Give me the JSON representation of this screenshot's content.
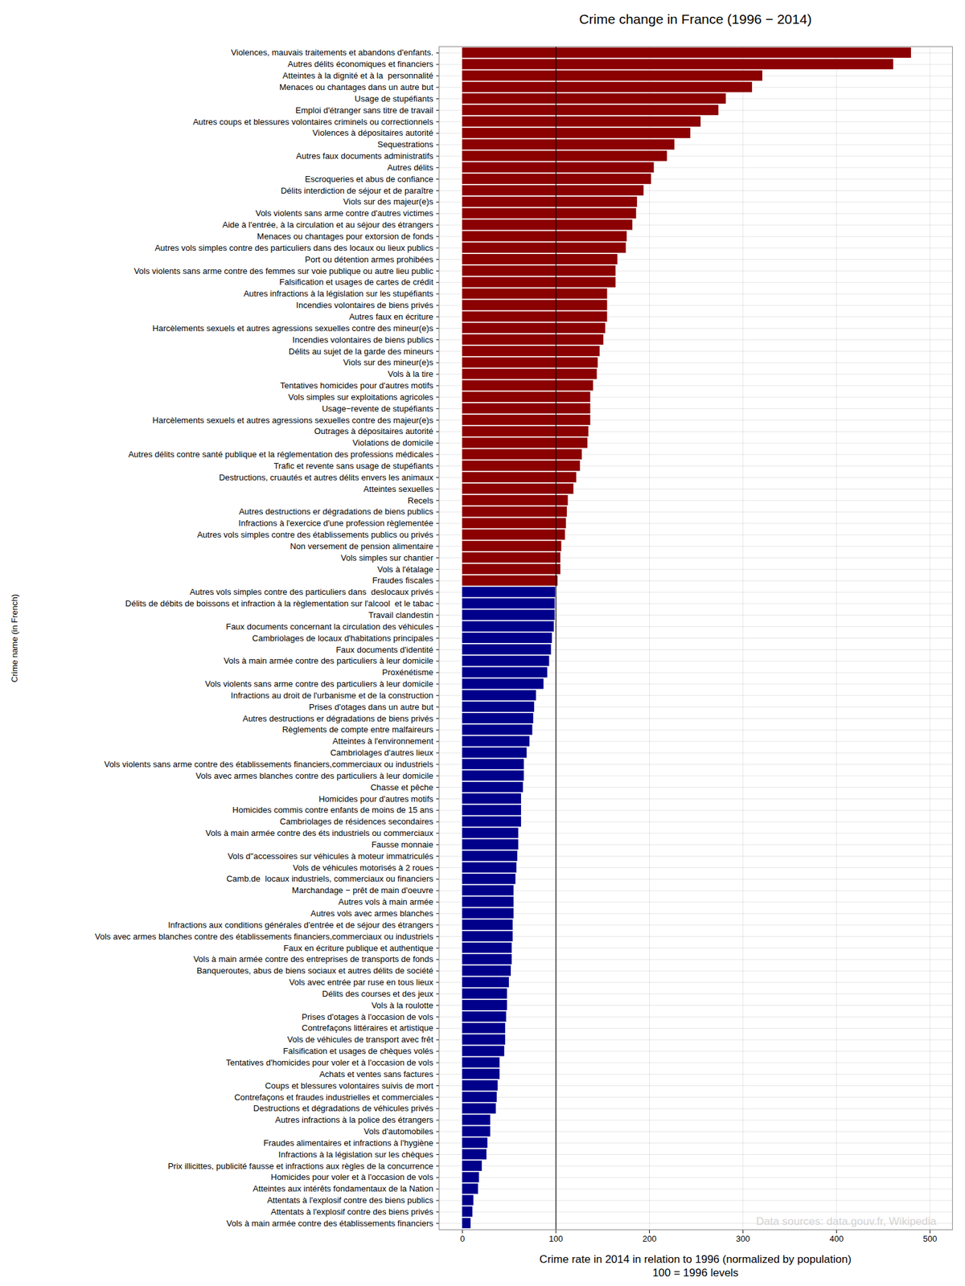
{
  "chart_data": {
    "type": "bar",
    "orientation": "horizontal",
    "title": "Crime change in France (1996 − 2014)",
    "xlabel": [
      "Crime rate in 2014 in relation to 1996 (normalized by population)",
      "100 = 1996 levels"
    ],
    "ylabel": "Crime name (in French)",
    "caption": "Data sources: data.gouv.fr, Wikipedia",
    "vline": 100,
    "xlim": [
      -25,
      524
    ],
    "xticks": [
      0,
      100,
      200,
      300,
      400,
      500
    ],
    "grid": true,
    "categories": [
      "Violences, mauvais traitements et abandons d'enfants.",
      "Autres délits économiques et financiers",
      "Atteintes à la dignité et à la  personnalité",
      "Menaces ou chantages dans un autre but",
      "Usage de stupéfiants",
      "Emploi d'étranger sans titre de travail",
      "Autres coups et blessures volontaires criminels ou correctionnels",
      "Violences à dépositaires autorité",
      "Sequestrations",
      "Autres faux documents administratifs",
      "Autres délits",
      "Escroqueries et abus de confiance",
      "Délits interdiction de séjour et de paraître",
      "Viols sur des majeur(e)s",
      "Vols violents sans arme contre d'autres victimes",
      "Aide à l'entrée, à la circulation et au séjour des étrangers",
      "Menaces ou chantages pour extorsion de fonds",
      "Autres vols simples contre des particuliers dans des locaux ou lieux publics",
      "Port ou détention armes prohibées",
      "Vols violents sans arme contre des femmes sur voie publique ou autre lieu public",
      "Falsification et usages de cartes de crédit",
      "Autres infractions à la législation sur les stupéfiants",
      "Incendies volontaires de biens privés",
      "Autres faux en écriture",
      "Harcèlements sexuels et autres agressions sexuelles contre des mineur(e)s",
      "Incendies volontaires de biens publics",
      "Délits au sujet de la garde des mineurs",
      "Viols sur des mineur(e)s",
      "Vols à la tire",
      "Tentatives homicides pour d'autres motifs",
      "Vols simples sur exploitations agricoles",
      "Usage−revente de stupéfiants",
      "Harcèlements sexuels et autres agressions sexuelles contre des majeur(e)s",
      "Outrages à dépositaires autorité",
      "Violations de domicile",
      "Autres délits contre santé publique et la réglementation des professions médicales",
      "Trafic et revente sans usage de stupéfiants",
      "Destructions, cruautés et autres délits envers les animaux",
      "Atteintes sexuelles",
      "Recels",
      "Autres destructions er dégradations de biens publics",
      "Infractions à l'exercice d'une profession règlementée",
      "Autres vols simples contre des établissements publics ou privés",
      "Non versement de pension alimentaire",
      "Vols simples sur chantier",
      "Vols à l'étalage",
      "Fraudes fiscales",
      "Autres vols simples contre des particuliers dans  deslocaux privés",
      "Délits de débits de boissons et infraction à la règlementation sur l'alcool  et le tabac",
      "Travail clandestin",
      "Faux documents concernant la circulation des véhicules",
      "Cambriolages de locaux d'habitations principales",
      "Faux documents d'identité",
      "Vols à main armée contre des particuliers à leur domicile",
      "Proxénétisme",
      "Vols violents sans arme contre des particuliers à leur domicile",
      "Infractions au droit de l'urbanisme et de la construction",
      "Prises d'otages dans un autre but",
      "Autres destructions er dégradations de biens privés",
      "Règlements de compte entre malfaireurs",
      "Atteintes à l'environnement",
      "Cambriolages d'autres lieux",
      "Vols violents sans arme contre des établissements financiers,commerciaux ou industriels",
      "Vols avec armes blanches contre des particuliers à leur domicile",
      "Chasse et pêche",
      "Homicides pour d'autres motifs",
      "Homicides commis contre enfants de moins de 15 ans",
      "Cambriolages de résidences secondaires",
      "Vols à main armée contre des éts industriels ou commerciaux",
      "Fausse monnaie",
      "Vols d\"accessoires sur véhicules à moteur immatriculés",
      "Vols de véhicules motorisés à 2 roues",
      "Camb.de  locaux industriels, commerciaux ou financiers",
      "Marchandage − prêt de main d'oeuvre",
      "Autres vols à main armée",
      "Autres vols avec armes blanches",
      "Infractions aux conditions générales d'entrée et de séjour des étrangers",
      "Vols avec armes blanches contre des établissements financiers,commerciaux ou industriels",
      "Faux en écriture publique et authentique",
      "Vols à main armée contre des entreprises de transports de fonds",
      "Banqueroutes, abus de biens sociaux et autres délits de société",
      "Vols avec entrée par ruse en tous lieux",
      "Délits des courses et des jeux",
      "Vols à la roulotte",
      "Prises d'otages à l'occasion de vols",
      "Contrefaçons littéraires et artistique",
      "Vols de véhicules de transport avec frêt",
      "Falsification et usages de chèques volés",
      "Tentatives d'homicides pour voler et à l'occasion de vols",
      "Achats et ventes sans factures",
      "Coups et blessures volontaires suivis de mort",
      "Contrefaçons et fraudes industrielles et commerciales",
      "Destructions et dégradations de véhicules privés",
      "Autres infractions à la police des étrangers",
      "Vols d'automobiles",
      "Fraudes alimentaires et infractions à l'hygiène",
      "Infractions à la législation sur les chèques",
      "Prix illicittes, publicité fausse et infractions aux règles de la concurrence",
      "Homicides pour voler et à l'occasion de vols",
      "Atteintes aux intérêts fondamentaux de la Nation",
      "Attentats à l'explosif contre des biens publics",
      "Attentats à l'explosif contre des biens privés",
      "Vols à main armée contre des établissements financiers"
    ],
    "values": [
      480,
      461,
      321,
      310,
      282,
      274,
      255,
      244,
      227,
      219,
      205,
      202,
      194,
      187,
      186,
      182,
      176,
      175,
      166,
      164,
      164,
      155,
      155,
      155,
      153,
      151,
      147,
      145,
      144,
      140,
      137,
      137,
      137,
      135,
      134,
      128,
      126,
      122,
      119,
      113,
      112,
      111,
      110,
      106,
      105,
      105,
      102,
      99.5,
      99,
      99,
      98,
      96,
      95,
      93,
      91,
      87,
      79,
      77,
      76,
      75,
      72,
      69,
      66,
      66,
      65,
      63,
      63,
      63,
      60,
      60,
      59,
      58,
      57,
      55,
      55,
      55,
      54,
      54,
      53,
      53,
      52,
      50,
      48,
      48,
      47,
      46,
      46,
      45,
      40,
      40,
      38,
      37,
      36,
      30,
      30,
      27,
      26,
      21,
      18,
      17,
      12,
      11,
      9
    ],
    "colors": [
      "#8b0000",
      "#8b0000",
      "#8b0000",
      "#8b0000",
      "#8b0000",
      "#8b0000",
      "#8b0000",
      "#8b0000",
      "#8b0000",
      "#8b0000",
      "#8b0000",
      "#8b0000",
      "#8b0000",
      "#8b0000",
      "#8b0000",
      "#8b0000",
      "#8b0000",
      "#8b0000",
      "#8b0000",
      "#8b0000",
      "#8b0000",
      "#8b0000",
      "#8b0000",
      "#8b0000",
      "#8b0000",
      "#8b0000",
      "#8b0000",
      "#8b0000",
      "#8b0000",
      "#8b0000",
      "#8b0000",
      "#8b0000",
      "#8b0000",
      "#8b0000",
      "#8b0000",
      "#8b0000",
      "#8b0000",
      "#8b0000",
      "#8b0000",
      "#8b0000",
      "#8b0000",
      "#8b0000",
      "#8b0000",
      "#8b0000",
      "#8b0000",
      "#8b0000",
      "#8b0000",
      "#00008b",
      "#00008b",
      "#00008b",
      "#00008b",
      "#00008b",
      "#00008b",
      "#00008b",
      "#00008b",
      "#00008b",
      "#00008b",
      "#00008b",
      "#00008b",
      "#00008b",
      "#00008b",
      "#00008b",
      "#00008b",
      "#00008b",
      "#00008b",
      "#00008b",
      "#00008b",
      "#00008b",
      "#00008b",
      "#00008b",
      "#00008b",
      "#00008b",
      "#00008b",
      "#00008b",
      "#00008b",
      "#00008b",
      "#00008b",
      "#00008b",
      "#00008b",
      "#00008b",
      "#00008b",
      "#00008b",
      "#00008b",
      "#00008b",
      "#00008b",
      "#00008b",
      "#00008b",
      "#00008b",
      "#00008b",
      "#00008b",
      "#00008b",
      "#00008b",
      "#00008b",
      "#00008b",
      "#00008b",
      "#00008b",
      "#00008b",
      "#00008b",
      "#00008b",
      "#00008b",
      "#00008b",
      "#00008b",
      "#00008b"
    ]
  }
}
